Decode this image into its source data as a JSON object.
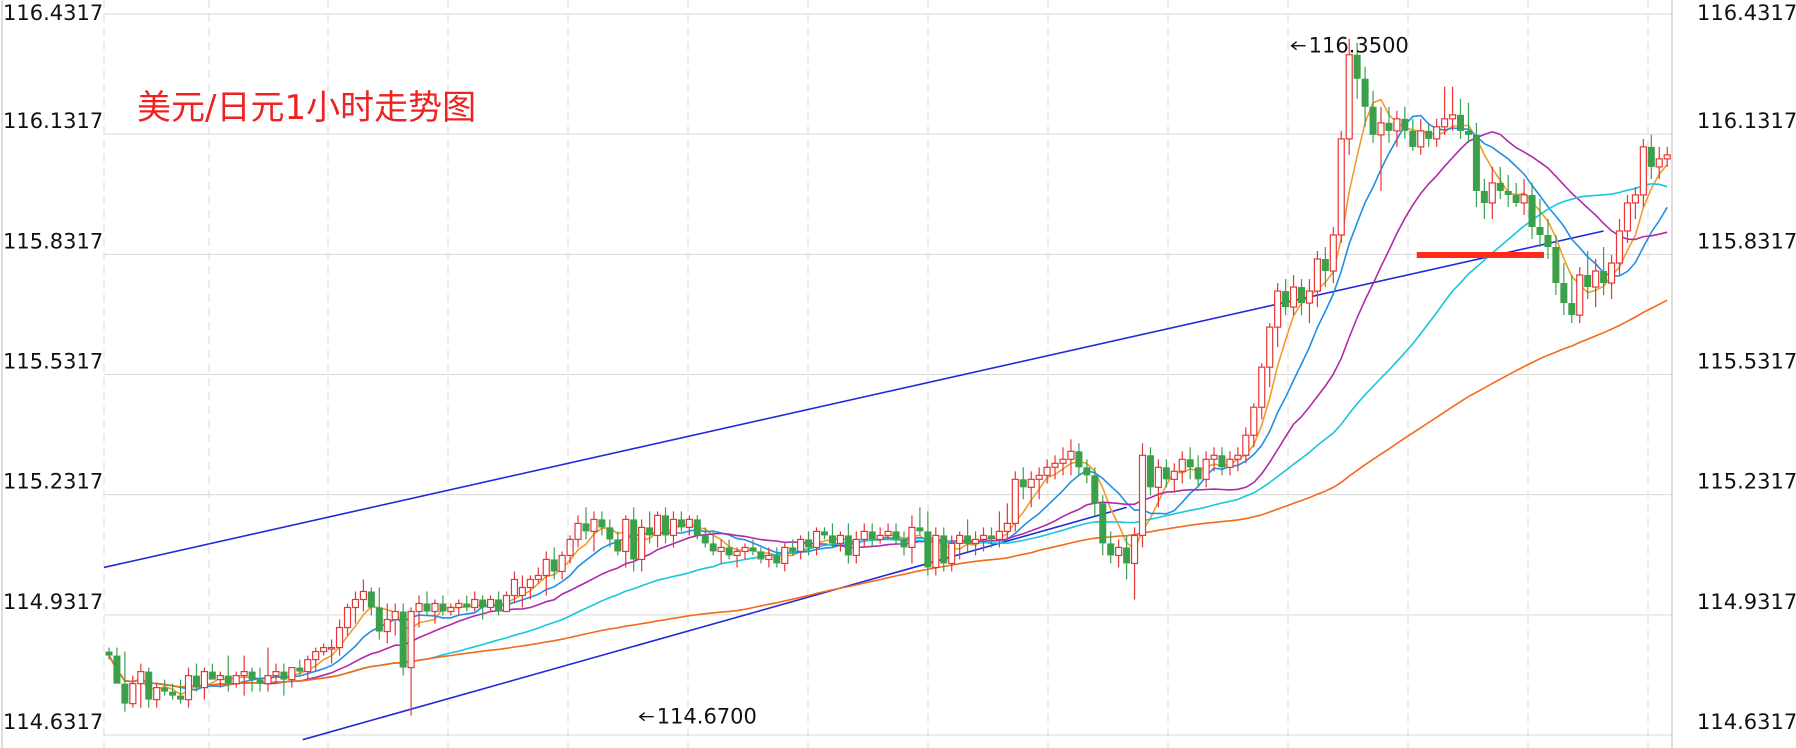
{
  "chart_data": {
    "type": "candlestick",
    "title": "美元/日元1小时走势图",
    "y_ticks": [
      "116.4317",
      "116.1317",
      "115.8317",
      "115.5317",
      "115.2317",
      "114.9317",
      "114.6317"
    ],
    "y_tick_values": [
      116.4317,
      116.1317,
      115.8317,
      115.5317,
      115.2317,
      114.9317,
      114.6317
    ],
    "ylim": [
      114.6317,
      116.4317
    ],
    "grid": true,
    "colors": {
      "up": "#e83535",
      "down": "#3aa04a",
      "ma1": "#f39a2c",
      "ma2": "#1e90e6",
      "ma3": "#b02aa8",
      "ma4": "#16c8d8",
      "ma5": "#f56a1a",
      "channel": "#1f2bd6",
      "support": "#ff2a1a"
    },
    "markers": [
      {
        "label": "116.3500",
        "candle": 148,
        "price": 116.35
      },
      {
        "label": "114.6700",
        "candle": 66,
        "price": 114.67
      }
    ],
    "overlays": {
      "channel_upper": [
        [
          0,
          115.05
        ],
        [
          188,
          115.89
        ]
      ],
      "channel_lower": [
        [
          25,
          114.62
        ],
        [
          128,
          115.2
        ]
      ],
      "support_line": [
        [
          165,
          115.83
        ],
        [
          180,
          115.83
        ]
      ]
    },
    "candles": [
      [
        114.84,
        114.85,
        114.82,
        114.83
      ],
      [
        114.83,
        114.85,
        114.76,
        114.76
      ],
      [
        114.76,
        114.84,
        114.69,
        114.71
      ],
      [
        114.71,
        114.78,
        114.7,
        114.76
      ],
      [
        114.76,
        114.81,
        114.7,
        114.79
      ],
      [
        114.79,
        114.8,
        114.7,
        114.72
      ],
      [
        114.72,
        114.76,
        114.7,
        114.75
      ],
      [
        114.75,
        114.77,
        114.73,
        114.74
      ],
      [
        114.74,
        114.76,
        114.72,
        114.73
      ],
      [
        114.73,
        114.77,
        114.71,
        114.72
      ],
      [
        114.72,
        114.8,
        114.7,
        114.78
      ],
      [
        114.78,
        114.81,
        114.74,
        114.75
      ],
      [
        114.75,
        114.8,
        114.72,
        114.79
      ],
      [
        114.79,
        114.81,
        114.77,
        114.77
      ],
      [
        114.77,
        114.79,
        114.75,
        114.78
      ],
      [
        114.78,
        114.83,
        114.74,
        114.76
      ],
      [
        114.76,
        114.79,
        114.75,
        114.78
      ],
      [
        114.78,
        114.83,
        114.73,
        114.79
      ],
      [
        114.79,
        114.8,
        114.74,
        114.77
      ],
      [
        114.77,
        114.8,
        114.74,
        114.76
      ],
      [
        114.76,
        114.85,
        114.74,
        114.78
      ],
      [
        114.78,
        114.81,
        114.76,
        114.79
      ],
      [
        114.79,
        114.81,
        114.73,
        114.77
      ],
      [
        114.77,
        114.8,
        114.75,
        114.8
      ],
      [
        114.8,
        114.82,
        114.78,
        114.79
      ],
      [
        114.79,
        114.83,
        114.77,
        114.82
      ],
      [
        114.82,
        114.85,
        114.79,
        114.84
      ],
      [
        114.84,
        114.86,
        114.83,
        114.85
      ],
      [
        114.85,
        114.87,
        114.81,
        114.85
      ],
      [
        114.85,
        114.92,
        114.83,
        114.9
      ],
      [
        114.9,
        114.96,
        114.88,
        114.95
      ],
      [
        114.95,
        114.99,
        114.91,
        114.97
      ],
      [
        114.97,
        115.02,
        114.94,
        114.99
      ],
      [
        114.99,
        115.0,
        114.93,
        114.95
      ],
      [
        114.95,
        115.0,
        114.87,
        114.89
      ],
      [
        114.89,
        114.96,
        114.86,
        114.92
      ],
      [
        114.92,
        114.96,
        114.88,
        114.94
      ],
      [
        114.94,
        114.96,
        114.78,
        114.8
      ],
      [
        114.8,
        114.95,
        114.68,
        114.94
      ],
      [
        114.94,
        114.98,
        114.9,
        114.96
      ],
      [
        114.96,
        114.99,
        114.93,
        114.94
      ],
      [
        114.94,
        114.97,
        114.91,
        114.96
      ],
      [
        114.96,
        114.98,
        114.93,
        114.94
      ],
      [
        114.94,
        114.96,
        114.93,
        114.95
      ],
      [
        114.95,
        114.97,
        114.93,
        114.96
      ],
      [
        114.96,
        114.98,
        114.94,
        114.95
      ],
      [
        114.95,
        114.99,
        114.94,
        114.97
      ],
      [
        114.97,
        114.98,
        114.92,
        114.95
      ],
      [
        114.95,
        114.98,
        114.94,
        114.97
      ],
      [
        114.97,
        114.99,
        114.93,
        114.94
      ],
      [
        114.94,
        114.99,
        114.94,
        114.98
      ],
      [
        114.98,
        115.04,
        114.96,
        115.02
      ],
      [
        114.98,
        115.03,
        114.95,
        115.0
      ],
      [
        115.0,
        115.03,
        114.97,
        115.02
      ],
      [
        115.02,
        115.05,
        115.01,
        115.03
      ],
      [
        115.03,
        115.09,
        114.98,
        115.07
      ],
      [
        115.07,
        115.1,
        115.02,
        115.04
      ],
      [
        115.04,
        115.09,
        115.02,
        115.08
      ],
      [
        115.08,
        115.13,
        115.06,
        115.12
      ],
      [
        115.12,
        115.18,
        115.1,
        115.16
      ],
      [
        115.16,
        115.2,
        115.12,
        115.14
      ],
      [
        115.14,
        115.19,
        115.09,
        115.17
      ],
      [
        115.17,
        115.19,
        115.13,
        115.15
      ],
      [
        115.15,
        115.17,
        115.1,
        115.12
      ],
      [
        115.12,
        115.14,
        115.08,
        115.09
      ],
      [
        115.09,
        115.18,
        115.05,
        115.17
      ],
      [
        115.17,
        115.2,
        115.04,
        115.07
      ],
      [
        115.07,
        115.17,
        115.04,
        115.15
      ],
      [
        115.15,
        115.19,
        115.11,
        115.13
      ],
      [
        115.13,
        115.19,
        115.1,
        115.18
      ],
      [
        115.18,
        115.2,
        115.11,
        115.13
      ],
      [
        115.13,
        115.19,
        115.1,
        115.17
      ],
      [
        115.17,
        115.19,
        115.14,
        115.15
      ],
      [
        115.15,
        115.18,
        115.13,
        115.17
      ],
      [
        115.17,
        115.18,
        115.12,
        115.13
      ],
      [
        115.13,
        115.15,
        115.1,
        115.11
      ],
      [
        115.11,
        115.14,
        115.08,
        115.09
      ],
      [
        115.09,
        115.12,
        115.06,
        115.1
      ],
      [
        115.1,
        115.12,
        115.07,
        115.08
      ],
      [
        115.08,
        115.1,
        115.05,
        115.09
      ],
      [
        115.09,
        115.11,
        115.07,
        115.1
      ],
      [
        115.1,
        115.12,
        115.08,
        115.09
      ],
      [
        115.09,
        115.1,
        115.06,
        115.07
      ],
      [
        115.07,
        115.1,
        115.05,
        115.08
      ],
      [
        115.08,
        115.1,
        115.05,
        115.06
      ],
      [
        115.06,
        115.11,
        115.04,
        115.1
      ],
      [
        115.1,
        115.12,
        115.08,
        115.09
      ],
      [
        115.09,
        115.13,
        115.07,
        115.12
      ],
      [
        115.12,
        115.14,
        115.08,
        115.1
      ],
      [
        115.1,
        115.15,
        115.08,
        115.14
      ],
      [
        115.14,
        115.15,
        115.12,
        115.13
      ],
      [
        115.13,
        115.16,
        115.1,
        115.11
      ],
      [
        115.11,
        115.14,
        115.09,
        115.13
      ],
      [
        115.13,
        115.16,
        115.06,
        115.08
      ],
      [
        115.08,
        115.14,
        115.06,
        115.12
      ],
      [
        115.12,
        115.16,
        115.1,
        115.14
      ],
      [
        115.14,
        115.16,
        115.1,
        115.12
      ],
      [
        115.12,
        115.15,
        115.11,
        115.13
      ],
      [
        115.13,
        115.16,
        115.12,
        115.14
      ],
      [
        115.14,
        115.16,
        115.11,
        115.12
      ],
      [
        115.12,
        115.14,
        115.08,
        115.1
      ],
      [
        115.1,
        115.18,
        115.06,
        115.15
      ],
      [
        115.15,
        115.2,
        115.13,
        115.14
      ],
      [
        115.14,
        115.19,
        115.03,
        115.05
      ],
      [
        115.05,
        115.15,
        115.03,
        115.13
      ],
      [
        115.13,
        115.15,
        115.04,
        115.06
      ],
      [
        115.06,
        115.13,
        115.04,
        115.11
      ],
      [
        115.11,
        115.14,
        115.07,
        115.13
      ],
      [
        115.13,
        115.17,
        115.09,
        115.11
      ],
      [
        115.11,
        115.14,
        115.08,
        115.12
      ],
      [
        115.12,
        115.15,
        115.09,
        115.13
      ],
      [
        115.13,
        115.15,
        115.1,
        115.12
      ],
      [
        115.12,
        115.19,
        115.1,
        115.14
      ],
      [
        115.14,
        115.21,
        115.12,
        115.16
      ],
      [
        115.16,
        115.29,
        115.14,
        115.27
      ],
      [
        115.27,
        115.3,
        115.22,
        115.25
      ],
      [
        115.25,
        115.29,
        115.2,
        115.27
      ],
      [
        115.27,
        115.3,
        115.22,
        115.28
      ],
      [
        115.28,
        115.32,
        115.26,
        115.3
      ],
      [
        115.3,
        115.33,
        115.27,
        115.31
      ],
      [
        115.31,
        115.35,
        115.28,
        115.32
      ],
      [
        115.32,
        115.37,
        115.28,
        115.34
      ],
      [
        115.34,
        115.36,
        115.28,
        115.3
      ],
      [
        115.3,
        115.32,
        115.26,
        115.28
      ],
      [
        115.28,
        115.3,
        115.18,
        115.21
      ],
      [
        115.21,
        115.23,
        115.08,
        115.11
      ],
      [
        115.11,
        115.14,
        115.06,
        115.08
      ],
      [
        115.08,
        115.12,
        115.05,
        115.1
      ],
      [
        115.1,
        115.13,
        115.02,
        115.06
      ],
      [
        115.06,
        115.15,
        114.97,
        115.13
      ],
      [
        115.13,
        115.36,
        115.1,
        115.33
      ],
      [
        115.33,
        115.35,
        115.23,
        115.25
      ],
      [
        115.25,
        115.32,
        115.2,
        115.3
      ],
      [
        115.3,
        115.32,
        115.25,
        115.27
      ],
      [
        115.27,
        115.31,
        115.24,
        115.29
      ],
      [
        115.29,
        115.34,
        115.26,
        115.32
      ],
      [
        115.32,
        115.35,
        115.27,
        115.3
      ],
      [
        115.3,
        115.33,
        115.25,
        115.27
      ],
      [
        115.27,
        115.34,
        115.25,
        115.32
      ],
      [
        115.32,
        115.35,
        115.29,
        115.33
      ],
      [
        115.33,
        115.35,
        115.28,
        115.3
      ],
      [
        115.3,
        115.34,
        115.28,
        115.32
      ],
      [
        115.32,
        115.35,
        115.29,
        115.33
      ],
      [
        115.33,
        115.4,
        115.31,
        115.38
      ],
      [
        115.38,
        115.46,
        115.35,
        115.45
      ],
      [
        115.45,
        115.56,
        115.42,
        115.55
      ],
      [
        115.55,
        115.66,
        115.5,
        115.65
      ],
      [
        115.65,
        115.76,
        115.6,
        115.74
      ],
      [
        115.74,
        115.77,
        115.68,
        115.7
      ],
      [
        115.7,
        115.78,
        115.68,
        115.75
      ],
      [
        115.75,
        115.77,
        115.68,
        115.71
      ],
      [
        115.71,
        115.77,
        115.66,
        115.74
      ],
      [
        115.74,
        115.84,
        115.7,
        115.82
      ],
      [
        115.82,
        115.85,
        115.75,
        115.79
      ],
      [
        115.79,
        115.9,
        115.76,
        115.88
      ],
      [
        115.88,
        116.14,
        115.86,
        116.12
      ],
      [
        116.12,
        116.37,
        116.08,
        116.33
      ],
      [
        116.33,
        116.36,
        116.22,
        116.27
      ],
      [
        116.27,
        116.3,
        116.15,
        116.2
      ],
      [
        116.2,
        116.24,
        116.11,
        116.13
      ],
      [
        116.13,
        116.2,
        115.99,
        116.16
      ],
      [
        116.16,
        116.2,
        116.11,
        116.14
      ],
      [
        116.14,
        116.19,
        116.1,
        116.17
      ],
      [
        116.17,
        116.2,
        116.12,
        116.14
      ],
      [
        116.14,
        116.17,
        116.09,
        116.1
      ],
      [
        116.1,
        116.17,
        116.08,
        116.14
      ],
      [
        116.14,
        116.16,
        116.1,
        116.12
      ],
      [
        116.12,
        116.17,
        116.1,
        116.15
      ],
      [
        116.15,
        116.25,
        116.13,
        116.17
      ],
      [
        116.17,
        116.25,
        116.14,
        116.18
      ],
      [
        116.18,
        116.22,
        116.12,
        116.14
      ],
      [
        116.14,
        116.21,
        116.11,
        116.13
      ],
      [
        116.13,
        116.16,
        115.95,
        115.99
      ],
      [
        115.99,
        116.02,
        115.92,
        115.96
      ],
      [
        115.96,
        116.05,
        115.92,
        116.01
      ],
      [
        116.01,
        116.05,
        115.97,
        115.99
      ],
      [
        115.99,
        116.03,
        115.95,
        115.98
      ],
      [
        115.98,
        116.01,
        115.95,
        115.96
      ],
      [
        115.96,
        116.02,
        115.93,
        115.98
      ],
      [
        115.98,
        116.01,
        115.87,
        115.9
      ],
      [
        115.9,
        115.97,
        115.85,
        115.88
      ],
      [
        115.88,
        115.92,
        115.82,
        115.85
      ],
      [
        115.85,
        115.88,
        115.73,
        115.76
      ],
      [
        115.76,
        115.81,
        115.68,
        115.71
      ],
      [
        115.71,
        115.78,
        115.66,
        115.68
      ],
      [
        115.68,
        115.8,
        115.66,
        115.78
      ],
      [
        115.78,
        115.84,
        115.72,
        115.75
      ],
      [
        115.75,
        115.82,
        115.7,
        115.79
      ],
      [
        115.79,
        115.85,
        115.73,
        115.76
      ],
      [
        115.76,
        115.83,
        115.72,
        115.81
      ],
      [
        115.81,
        115.92,
        115.78,
        115.89
      ],
      [
        115.89,
        115.98,
        115.86,
        115.96
      ],
      [
        115.96,
        116.0,
        115.92,
        115.98
      ],
      [
        115.98,
        116.12,
        115.95,
        116.1
      ],
      [
        116.1,
        116.13,
        116.02,
        116.05
      ],
      [
        116.05,
        116.1,
        116.02,
        116.07
      ],
      [
        116.07,
        116.1,
        116.05,
        116.08
      ]
    ],
    "moving_averages": [
      {
        "window": 5,
        "color": "ma1"
      },
      {
        "window": 10,
        "color": "ma2"
      },
      {
        "window": 20,
        "color": "ma3"
      },
      {
        "window": 40,
        "color": "ma4"
      },
      {
        "window": 80,
        "color": "ma5"
      }
    ]
  }
}
